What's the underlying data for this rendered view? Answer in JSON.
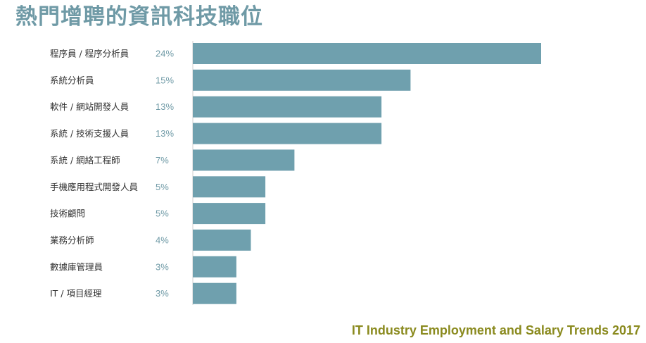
{
  "colors": {
    "title": "#6f9aa6",
    "bar": "#6fa0ae",
    "value_label": "#6f9aa6",
    "category_label": "#333333",
    "axis": "#cfcfcf",
    "footer": "#8a8a1e"
  },
  "footer": "IT Industry Employment and Salary Trends 2017",
  "chart_data": {
    "type": "bar",
    "orientation": "horizontal",
    "title": "熱門增聘的資訊科技職位",
    "xlabel": "",
    "ylabel": "",
    "xlim": [
      0,
      24
    ],
    "grid": false,
    "legend": "none",
    "value_suffix": "%",
    "categories": [
      "程序員 / 程序分析員",
      "系統分析員",
      "軟件 / 網站開發人員",
      "系統 / 技術支援人員",
      "系統 / 網絡工程師",
      "手機應用程式開發人員",
      "技術顧問",
      "業務分析師",
      "數據庫管理員",
      "IT / 項目經理"
    ],
    "values": [
      24,
      15,
      13,
      13,
      7,
      5,
      5,
      4,
      3,
      3
    ]
  }
}
